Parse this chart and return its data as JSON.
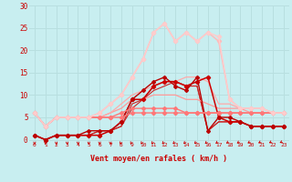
{
  "background_color": "#c8eef0",
  "grid_color": "#b8dfe0",
  "xlabel": "Vent moyen/en rafales ( km/h )",
  "xlabel_color": "#cc0000",
  "tick_color": "#cc0000",
  "xlim": [
    -0.5,
    23.5
  ],
  "ylim": [
    -0.5,
    30
  ],
  "yticks": [
    0,
    5,
    10,
    15,
    20,
    25,
    30
  ],
  "xticks": [
    0,
    1,
    2,
    3,
    4,
    5,
    6,
    7,
    8,
    9,
    10,
    11,
    12,
    13,
    14,
    15,
    16,
    17,
    18,
    19,
    20,
    21,
    22,
    23
  ],
  "series": [
    {
      "x": [
        0,
        1,
        2,
        3,
        4,
        5,
        6,
        7,
        8,
        9,
        10,
        11,
        12,
        13,
        14,
        15,
        16,
        17,
        18,
        19,
        20,
        21,
        22,
        23
      ],
      "y": [
        1,
        0,
        1,
        1,
        1,
        1,
        1,
        2,
        4,
        9,
        9,
        12,
        13,
        13,
        12,
        13,
        14,
        5,
        4,
        4,
        3,
        3,
        3,
        3
      ],
      "color": "#cc0000",
      "lw": 1.1,
      "marker": "D",
      "ms": 2.2
    },
    {
      "x": [
        0,
        1,
        2,
        3,
        4,
        5,
        6,
        7,
        8,
        9,
        10,
        11,
        12,
        13,
        14,
        15,
        16,
        17,
        18,
        19,
        20,
        21,
        22,
        23
      ],
      "y": [
        1,
        0,
        1,
        1,
        1,
        2,
        2,
        2,
        4,
        9,
        11,
        13,
        14,
        12,
        11,
        14,
        2,
        5,
        5,
        4,
        3,
        3,
        3,
        3
      ],
      "color": "#bb0000",
      "lw": 1.0,
      "marker": "D",
      "ms": 2.0
    },
    {
      "x": [
        0,
        1,
        2,
        3,
        4,
        5,
        6,
        7,
        8,
        9,
        10,
        11,
        12,
        13,
        14,
        15,
        16,
        17,
        18,
        19,
        20,
        21,
        22,
        23
      ],
      "y": [
        1,
        0,
        1,
        1,
        1,
        1,
        2,
        2,
        3,
        8,
        9,
        12,
        13,
        13,
        12,
        12,
        2,
        4,
        4,
        4,
        3,
        3,
        3,
        3
      ],
      "color": "#cc2222",
      "lw": 0.8,
      "marker": null,
      "ms": 0
    },
    {
      "x": [
        0,
        1,
        2,
        3,
        4,
        5,
        6,
        7,
        8,
        9,
        10,
        11,
        12,
        13,
        14,
        15,
        16,
        17,
        18,
        19,
        20,
        21,
        22,
        23
      ],
      "y": [
        1,
        0,
        1,
        1,
        1,
        1,
        2,
        2,
        3,
        7,
        9,
        11,
        12,
        13,
        12,
        12,
        2,
        4,
        4,
        4,
        3,
        3,
        3,
        3
      ],
      "color": "#cc2222",
      "lw": 0.8,
      "marker": null,
      "ms": 0
    },
    {
      "x": [
        0,
        1,
        2,
        3,
        4,
        5,
        6,
        7,
        8,
        9,
        10,
        11,
        12,
        13,
        14,
        15,
        16,
        17,
        18,
        19,
        20,
        21,
        22,
        23
      ],
      "y": [
        6,
        3,
        5,
        5,
        5,
        5,
        5,
        5,
        5,
        6,
        6,
        6,
        6,
        6,
        6,
        6,
        6,
        6,
        6,
        6,
        6,
        6,
        6,
        6
      ],
      "color": "#ff7777",
      "lw": 1.0,
      "marker": "D",
      "ms": 2.2
    },
    {
      "x": [
        0,
        1,
        2,
        3,
        4,
        5,
        6,
        7,
        8,
        9,
        10,
        11,
        12,
        13,
        14,
        15,
        16,
        17,
        18,
        19,
        20,
        21,
        22,
        23
      ],
      "y": [
        6,
        3,
        5,
        5,
        5,
        5,
        5,
        5,
        6,
        7,
        7,
        7,
        7,
        7,
        6,
        6,
        6,
        6,
        6,
        6,
        6,
        6,
        6,
        6
      ],
      "color": "#ff7777",
      "lw": 1.0,
      "marker": "D",
      "ms": 2.0
    },
    {
      "x": [
        0,
        1,
        2,
        3,
        4,
        5,
        6,
        7,
        8,
        9,
        10,
        11,
        12,
        13,
        14,
        15,
        16,
        17,
        18,
        19,
        20,
        21,
        22,
        23
      ],
      "y": [
        6,
        3,
        5,
        5,
        5,
        5,
        5,
        6,
        7,
        9,
        9,
        10,
        10,
        10,
        9,
        9,
        8,
        7,
        7,
        7,
        6,
        6,
        6,
        6
      ],
      "color": "#ff9999",
      "lw": 0.9,
      "marker": null,
      "ms": 0
    },
    {
      "x": [
        0,
        1,
        2,
        3,
        4,
        5,
        6,
        7,
        8,
        9,
        10,
        11,
        12,
        13,
        14,
        15,
        16,
        17,
        18,
        19,
        20,
        21,
        22,
        23
      ],
      "y": [
        6,
        3,
        5,
        5,
        5,
        5,
        5,
        6,
        8,
        10,
        11,
        12,
        13,
        13,
        14,
        14,
        13,
        8,
        8,
        7,
        7,
        7,
        6,
        6
      ],
      "color": "#ffaaaa",
      "lw": 0.9,
      "marker": null,
      "ms": 0
    },
    {
      "x": [
        0,
        1,
        2,
        3,
        4,
        5,
        6,
        7,
        8,
        9,
        10,
        11,
        12,
        13,
        14,
        15,
        16,
        17,
        18,
        19,
        20,
        21,
        22,
        23
      ],
      "y": [
        6,
        3,
        5,
        5,
        5,
        5,
        6,
        8,
        10,
        14,
        18,
        24,
        26,
        22,
        24,
        22,
        24,
        22,
        9,
        7,
        7,
        7,
        6,
        6
      ],
      "color": "#ffbbbb",
      "lw": 1.1,
      "marker": "D",
      "ms": 2.2
    },
    {
      "x": [
        0,
        1,
        2,
        3,
        4,
        5,
        6,
        7,
        8,
        9,
        10,
        11,
        12,
        13,
        14,
        15,
        16,
        17,
        18,
        19,
        20,
        21,
        22,
        23
      ],
      "y": [
        6,
        3,
        5,
        5,
        5,
        5,
        6,
        8,
        10,
        14,
        18,
        24,
        26,
        22,
        24,
        22,
        24,
        23,
        9,
        7,
        7,
        7,
        6,
        6
      ],
      "color": "#ffcccc",
      "lw": 1.1,
      "marker": "D",
      "ms": 2.2
    }
  ],
  "arrow_color": "#cc0000",
  "arrows_angles": [
    270,
    270,
    270,
    270,
    270,
    270,
    270,
    270,
    255,
    250,
    245,
    242,
    240,
    238,
    236,
    234,
    232,
    228,
    225,
    222,
    220,
    218,
    215,
    212
  ]
}
